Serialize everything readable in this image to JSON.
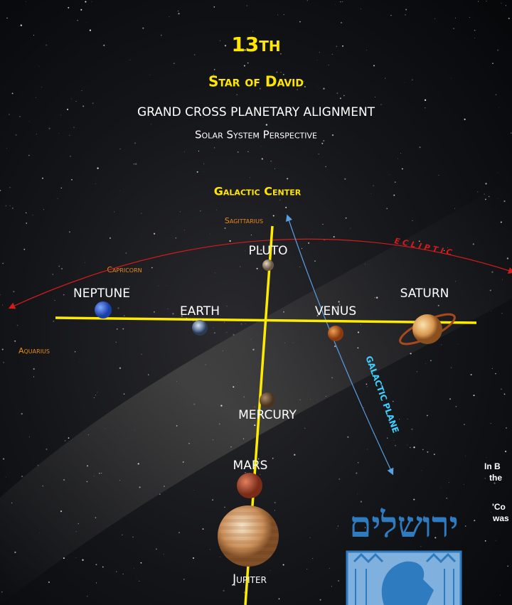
{
  "header": {
    "title": "13th",
    "subtitle": "Star of David",
    "line1": "GRAND CROSS PLANETARY ALIGNMENT",
    "line2": "Solar System Perspective"
  },
  "labels": {
    "galactic_center": "Galactic Center",
    "sagittarius": "Sagittarius",
    "capricorn": "Capricorn",
    "aquarius": "Aquarius",
    "ecliptic": "ECLIPTIC",
    "galactic_plane": "GALACTIC PLANE"
  },
  "planets": {
    "pluto": "PLUTO",
    "neptune": "NEPTUNE",
    "earth": "EARTH",
    "venus": "VENUS",
    "saturn": "SATURN",
    "mercury": "MERCURY",
    "mars": "MARS",
    "jupiter": "Jupiter"
  },
  "side_text": [
    "In B",
    "the",
    "'Co",
    "was"
  ],
  "emblem": {
    "hebrew": "ירושלים"
  }
}
